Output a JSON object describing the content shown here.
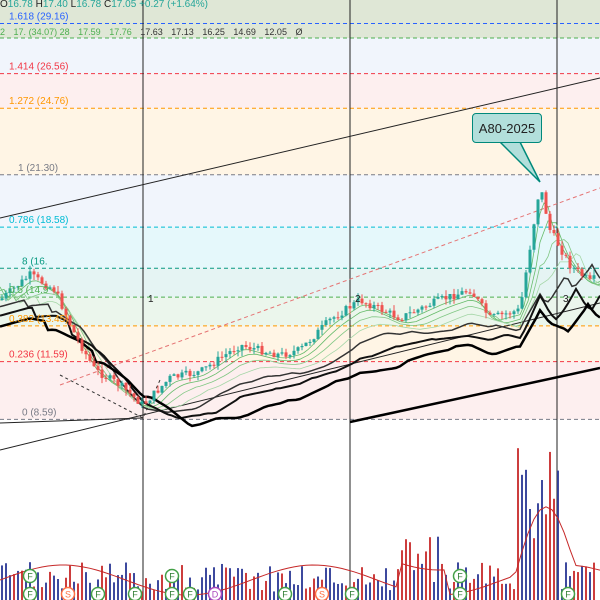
{
  "header": {
    "o_label": "O",
    "o_value": "16.78",
    "h_label": "H",
    "h_value": "17.40",
    "l_label": "L",
    "l_value": "16.78",
    "c_label": "C",
    "c_value": "17.05",
    "change": "+0.27 (+1.64%)"
  },
  "ma_values": [
    "2",
    "17.",
    "(34.07)",
    "28",
    "17.59",
    "17.76",
    "17.63",
    "17.13",
    "16.25",
    "14.69",
    "12.05",
    "Ø"
  ],
  "annotation": {
    "text": "A80-2025"
  },
  "colors": {
    "up": "#26a69a",
    "down": "#ef5350",
    "volume_up": "#283593",
    "volume_down": "#c62828",
    "ma_short": "#66bb6a",
    "ma_long": "#000000",
    "channel": "#222222",
    "dashed_trend": "#e57373"
  },
  "chart_data": {
    "type": "line",
    "price_range": [
      5.5,
      37
    ],
    "fib_levels": [
      {
        "ratio": 0,
        "price": 8.59,
        "label": "0 (8.59)",
        "color": "#787b86"
      },
      {
        "ratio": 0.236,
        "price": 11.59,
        "label": "0.236 (11.59)",
        "color": "#f23645"
      },
      {
        "ratio": 0.382,
        "price": 13.45,
        "label": "0.382 (13.45)",
        "color": "#ff9800"
      },
      {
        "ratio": 0.5,
        "price": 14.94,
        "label": "0.5 (14.9",
        "color": "#4caf50"
      },
      {
        "ratio": 0.618,
        "price": 16.44,
        "label": "8 (16.",
        "color": "#089981"
      },
      {
        "ratio": 0.786,
        "price": 18.58,
        "label": "0.786 (18.58)",
        "color": "#00bcd4"
      },
      {
        "ratio": 1,
        "price": 21.3,
        "label": "1 (21.30)",
        "color": "#787b86"
      },
      {
        "ratio": 1.272,
        "price": 24.76,
        "label": "1.272 (24.76)",
        "color": "#ff9800"
      },
      {
        "ratio": 1.414,
        "price": 26.56,
        "label": "1.414 (26.56)",
        "color": "#f23645"
      },
      {
        "ratio": 1.618,
        "price": 29.16,
        "label": "1.618 (29.16)",
        "color": "#2962ff"
      }
    ],
    "wave_labels": [
      "1",
      "2",
      "3"
    ],
    "event_markers": [
      "F",
      "F",
      "S",
      "F",
      "F",
      "F",
      "F",
      "F",
      "D",
      "F",
      "S",
      "F",
      "F",
      "F",
      "F"
    ]
  }
}
